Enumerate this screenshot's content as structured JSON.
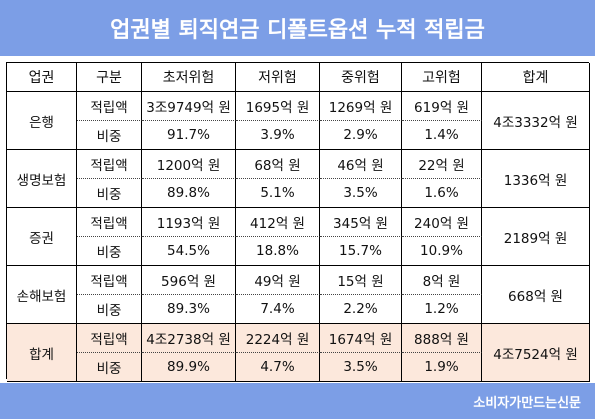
{
  "title": "업권별 퇴직연금 디폴트옵션 누적 적립금",
  "footer": "소비자가만드는신문",
  "columns": [
    "업권",
    "구분",
    "초저위험",
    "저위험",
    "중위험",
    "고위험",
    "합계"
  ],
  "groups": [
    {
      "name": "은행",
      "rows": [
        {
          "label": "적립액",
          "values": [
            "3조9749억 원",
            "1695억 원",
            "1269억 원",
            "619억 원"
          ]
        },
        {
          "label": "비중",
          "values": [
            "91.7%",
            "3.9%",
            "2.9%",
            "1.4%"
          ]
        }
      ],
      "total": "4조3332억 원"
    },
    {
      "name": "생명보험",
      "rows": [
        {
          "label": "적립액",
          "values": [
            "1200억 원",
            "68억 원",
            "46억 원",
            "22억 원"
          ]
        },
        {
          "label": "비중",
          "values": [
            "89.8%",
            "5.1%",
            "3.5%",
            "1.6%"
          ]
        }
      ],
      "total": "1336억 원"
    },
    {
      "name": "증권",
      "rows": [
        {
          "label": "적립액",
          "values": [
            "1193억 원",
            "412억 원",
            "345억 원",
            "240억 원"
          ]
        },
        {
          "label": "비중",
          "values": [
            "54.5%",
            "18.8%",
            "15.7%",
            "10.9%"
          ]
        }
      ],
      "total": "2189억 원"
    },
    {
      "name": "손해보험",
      "rows": [
        {
          "label": "적립액",
          "values": [
            "596억 원",
            "49억 원",
            "15억 원",
            "8억 원"
          ]
        },
        {
          "label": "비중",
          "values": [
            "89.3%",
            "7.4%",
            "2.2%",
            "1.2%"
          ]
        }
      ],
      "total": "668억 원"
    },
    {
      "name": "합계",
      "rows": [
        {
          "label": "적립액",
          "values": [
            "4조2738억 원",
            "2224억 원",
            "1674억 원",
            "888억 원"
          ]
        },
        {
          "label": "비중",
          "values": [
            "89.9%",
            "4.7%",
            "3.5%",
            "1.9%"
          ]
        }
      ],
      "total": "4조7524억 원"
    }
  ],
  "colors": {
    "header_bar": "#7c9ee6",
    "total_row": "#fce8dc"
  }
}
